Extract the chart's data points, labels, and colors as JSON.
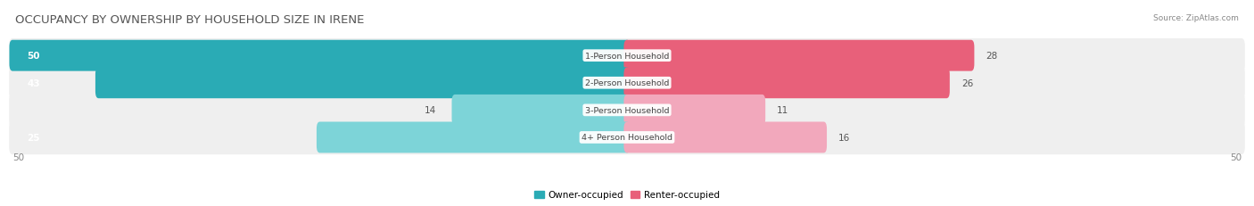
{
  "title": "OCCUPANCY BY OWNERSHIP BY HOUSEHOLD SIZE IN IRENE",
  "source": "Source: ZipAtlas.com",
  "categories": [
    "1-Person Household",
    "2-Person Household",
    "3-Person Household",
    "4+ Person Household"
  ],
  "owner_values": [
    50,
    43,
    14,
    25
  ],
  "renter_values": [
    28,
    26,
    11,
    16
  ],
  "max_scale": 50,
  "owner_color_full": "#2AABB5",
  "owner_color_partial": "#7DD4D8",
  "renter_color_full": "#E8607A",
  "renter_color_partial": "#F2A8BC",
  "bg_color": "#ffffff",
  "row_bg_color": "#efefef",
  "legend_owner": "Owner-occupied",
  "legend_renter": "Renter-occupied",
  "axis_label": "50",
  "title_fontsize": 9.5,
  "bar_height": 0.62,
  "owner_text_white_threshold": 20,
  "renter_text_dark_threshold": 15
}
